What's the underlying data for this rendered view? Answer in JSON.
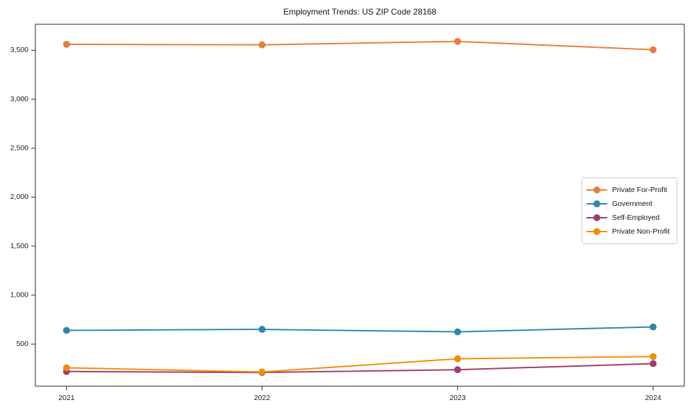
{
  "chart_data": {
    "type": "line",
    "title": "Employment Trends: US ZIP Code 28168",
    "xlabel": "",
    "ylabel": "",
    "x": [
      "2021",
      "2022",
      "2023",
      "2024"
    ],
    "series": [
      {
        "name": "Private For-Profit",
        "color": "#e87d3e",
        "values": [
          3560,
          3555,
          3590,
          3505
        ]
      },
      {
        "name": "Government",
        "color": "#2e86ab",
        "values": [
          640,
          650,
          625,
          675
        ]
      },
      {
        "name": "Self-Employed",
        "color": "#a23b72",
        "values": [
          220,
          210,
          238,
          300
        ]
      },
      {
        "name": "Private Non-Profit",
        "color": "#f18f01",
        "values": [
          258,
          215,
          350,
          372
        ]
      }
    ],
    "y_ticks": [
      {
        "value": 500,
        "label": "500"
      },
      {
        "value": 1000,
        "label": "1,000"
      },
      {
        "value": 1500,
        "label": "1,500"
      },
      {
        "value": 2000,
        "label": "2,000"
      },
      {
        "value": 2500,
        "label": "2,500"
      },
      {
        "value": 3000,
        "label": "3,000"
      },
      {
        "value": 3500,
        "label": "3,500"
      }
    ],
    "ylim": [
      70,
      3765
    ],
    "x_margin_fraction": 0.048,
    "grid": false,
    "legend_position": "center-right",
    "axis_color": "#262626",
    "marker": "circle",
    "line_width": 2,
    "marker_radius": 5
  }
}
